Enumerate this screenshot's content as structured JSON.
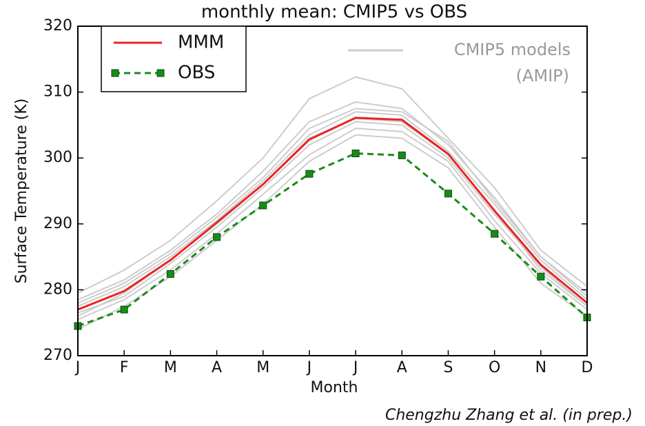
{
  "chart_data": {
    "type": "line",
    "title": "monthly mean: CMIP5 vs OBS",
    "x_label": "Month",
    "y_label": "Surface Temperature (K)",
    "categories": [
      "J",
      "F",
      "M",
      "A",
      "M",
      "J",
      "J",
      "A",
      "S",
      "O",
      "N",
      "D"
    ],
    "ylim": [
      270,
      320
    ],
    "yticks": [
      270,
      280,
      290,
      300,
      310,
      320
    ],
    "series": [
      {
        "name": "MMM",
        "color": "#ee2222",
        "style": "solid",
        "values": [
          277,
          279.8,
          284.5,
          290.2,
          296,
          302.8,
          306.1,
          305.8,
          300.6,
          292,
          283.8,
          278
        ]
      },
      {
        "name": "OBS",
        "color": "#1a8a1a",
        "style": "dashed-square",
        "values": [
          274.5,
          277,
          282.4,
          288,
          292.8,
          297.6,
          300.7,
          300.4,
          294.6,
          288.5,
          282,
          275.8
        ]
      }
    ],
    "models": {
      "name": "CMIP5 models",
      "note": "(AMIP)",
      "color": "#cccccc",
      "values": [
        [
          279.5,
          283,
          287.5,
          293.5,
          300,
          309,
          312.3,
          310.5,
          303,
          295.5,
          286,
          280.5
        ],
        [
          278.5,
          281.5,
          286,
          291.5,
          298,
          305.5,
          308.5,
          307.5,
          302,
          294,
          285,
          279.5
        ],
        [
          277.5,
          280.5,
          285,
          290.5,
          296.5,
          303.5,
          307,
          306.5,
          301,
          293,
          284.5,
          278.5
        ],
        [
          276.5,
          279,
          284,
          289.5,
          295.5,
          302,
          305.5,
          305,
          300,
          291.5,
          283.5,
          277.5
        ],
        [
          275.5,
          278.5,
          283,
          288.5,
          294.5,
          300.5,
          304.5,
          304,
          299.5,
          290.5,
          282.5,
          277
        ],
        [
          274,
          277.5,
          282,
          287.5,
          293,
          299.5,
          303.5,
          303,
          298.5,
          289.5,
          281,
          276
        ],
        [
          278,
          281,
          285.5,
          291,
          297,
          304.5,
          307.5,
          307,
          302.5,
          293.5,
          285,
          279
        ],
        [
          276,
          279.5,
          284.5,
          290,
          296,
          303,
          306,
          305.5,
          300.5,
          292,
          283,
          277.5
        ]
      ]
    },
    "caption": "Chengzhu Zhang et al. (in prep.)"
  }
}
